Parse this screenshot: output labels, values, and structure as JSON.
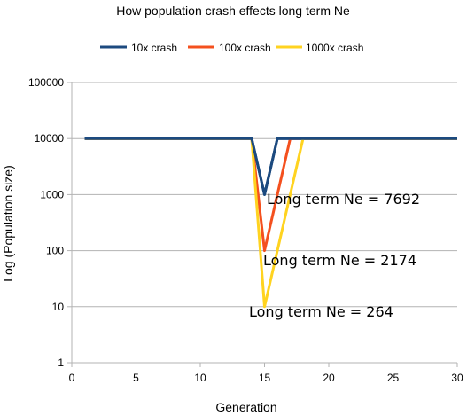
{
  "chart_data": {
    "type": "line",
    "title": "How population crash effects long term Ne",
    "xlabel": "Generation",
    "ylabel": "Log (Population size)",
    "xlim": [
      0,
      30
    ],
    "ylim": [
      1,
      100000
    ],
    "y_scale": "log",
    "x_ticks": [
      "0",
      "5",
      "10",
      "15",
      "20",
      "25",
      "30"
    ],
    "y_ticks": [
      "1",
      "10",
      "100",
      "1000",
      "10000",
      "100000"
    ],
    "grid": "horizontal major",
    "legend_position": "top",
    "series": [
      {
        "name": "10x crash",
        "color": "#1c4a7f",
        "x": [
          1,
          14,
          15,
          16,
          30
        ],
        "y": [
          10000,
          10000,
          1000,
          10000,
          10000
        ]
      },
      {
        "name": "100x crash",
        "color": "#f4501e",
        "x": [
          1,
          14,
          15,
          17,
          30
        ],
        "y": [
          10000,
          10000,
          100,
          10000,
          10000
        ]
      },
      {
        "name": "1000x crash",
        "color": "#ffd320",
        "x": [
          1,
          14,
          15,
          18,
          30
        ],
        "y": [
          10000,
          10000,
          10,
          10000,
          10000
        ]
      }
    ],
    "annotations": [
      {
        "text": "Long term Ne = 7692"
      },
      {
        "text": "Long term Ne = 2174"
      },
      {
        "text": "Long term Ne = 264"
      }
    ]
  }
}
